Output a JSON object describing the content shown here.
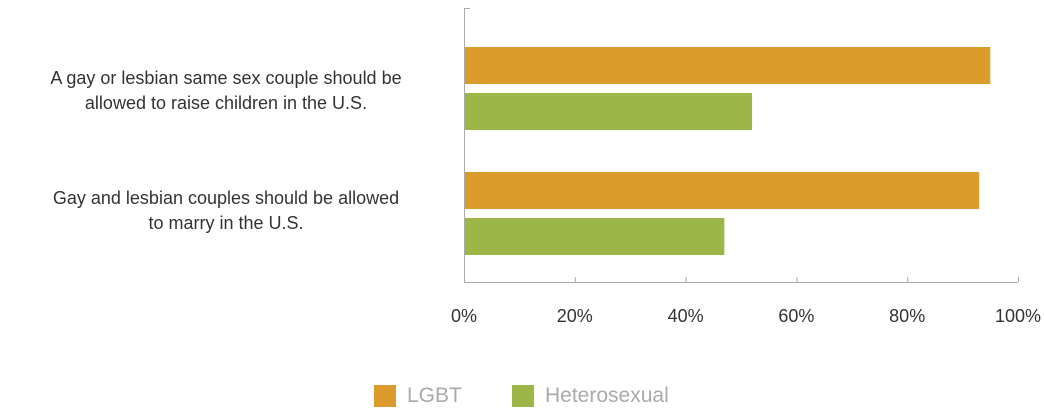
{
  "chart_data": {
    "type": "bar",
    "orientation": "horizontal",
    "categories": [
      "A gay or lesbian same sex couple should be allowed to raise children in the U.S.",
      "Gay and lesbian couples should be allowed to marry in the U.S."
    ],
    "category_lines": [
      [
        "A gay or lesbian same sex couple should be",
        "allowed to raise children in the U.S."
      ],
      [
        "Gay and lesbian couples should be allowed",
        "to marry in the U.S."
      ]
    ],
    "series": [
      {
        "name": "LGBT",
        "values": [
          95,
          93
        ],
        "color": "#DB9C2B"
      },
      {
        "name": "Heterosexual",
        "values": [
          52,
          47
        ],
        "color": "#9DB648"
      }
    ],
    "xlim": [
      0,
      100
    ],
    "ticks": [
      "0%",
      "20%",
      "40%",
      "60%",
      "80%",
      "100%"
    ],
    "tick_values": [
      0,
      20,
      40,
      60,
      80,
      100
    ],
    "grid": false,
    "legend_position": "bottom"
  }
}
